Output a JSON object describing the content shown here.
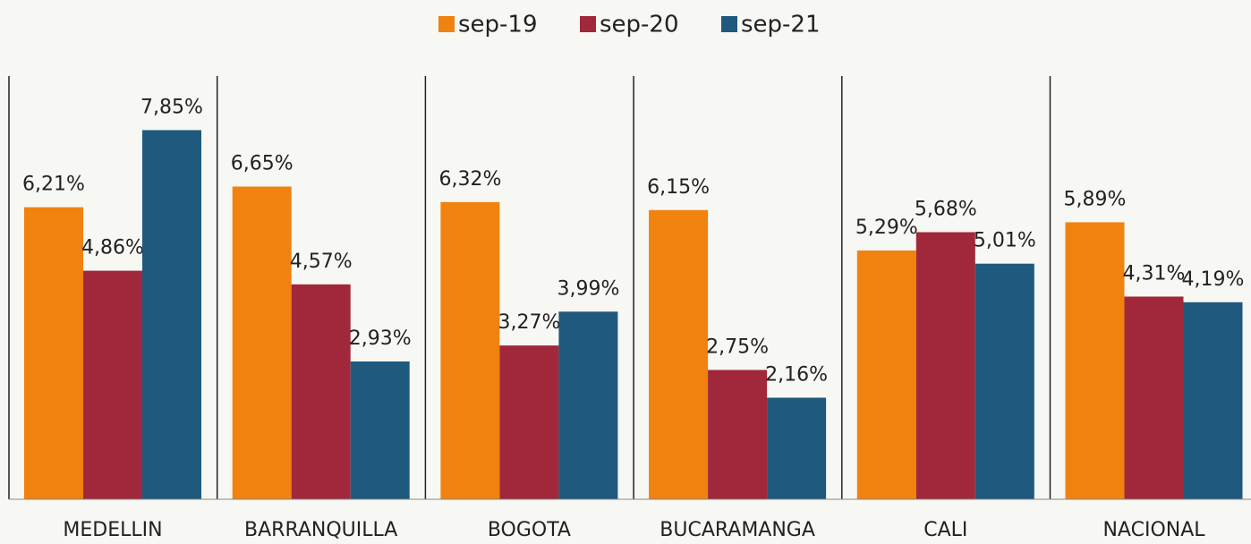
{
  "chart_data": {
    "type": "bar",
    "categories": [
      "MEDELLIN",
      "BARRANQUILLA",
      "BOGOTA",
      "BUCARAMANGA",
      "CALI",
      "NACIONAL"
    ],
    "series": [
      {
        "name": "sep-19",
        "color": "#f0820f",
        "values": [
          6.21,
          6.65,
          6.32,
          6.15,
          5.29,
          5.89
        ],
        "value_labels": [
          "6,21%",
          "6,65%",
          "6,32%",
          "6,15%",
          "5,29%",
          "5,89%"
        ]
      },
      {
        "name": "sep-20",
        "color": "#a0283a",
        "values": [
          4.86,
          4.57,
          3.27,
          2.75,
          5.68,
          4.31
        ],
        "value_labels": [
          "4,86%",
          "4,57%",
          "3,27%",
          "2,75%",
          "5,68%",
          "4,31%"
        ]
      },
      {
        "name": "sep-21",
        "color": "#1f5a7e",
        "values": [
          7.85,
          2.93,
          3.99,
          2.16,
          5.01,
          4.19
        ],
        "value_labels": [
          "7,85%",
          "2,93%",
          "3,99%",
          "2,16%",
          "5,01%",
          "4,19%"
        ]
      }
    ],
    "ylim": [
      0,
      9
    ],
    "legend": "top"
  }
}
